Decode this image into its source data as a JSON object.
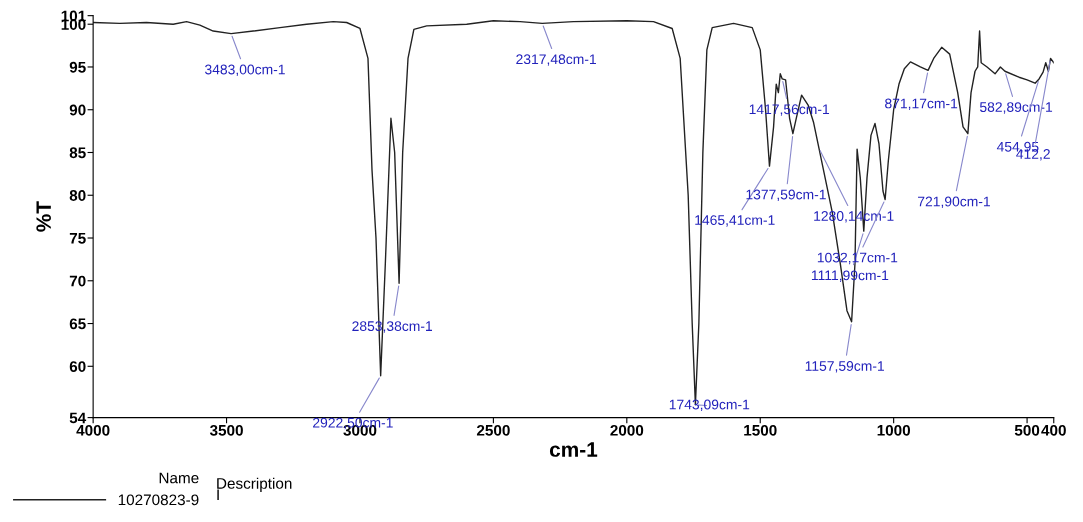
{
  "chart_data": {
    "type": "line",
    "xlabel": "cm-1",
    "ylabel": "%T",
    "xlim": [
      4000,
      400
    ],
    "xticks": [
      4000,
      3500,
      3000,
      2500,
      2000,
      1500,
      1000,
      500,
      400
    ],
    "ylim": [
      54,
      101
    ],
    "yticks": [
      54,
      60,
      65,
      70,
      75,
      80,
      85,
      90,
      95,
      100,
      101
    ],
    "grid": false,
    "legend": "bottom",
    "legend_title": "Name",
    "series": [
      {
        "name": "10270823-9",
        "color": "#222222",
        "x": [
          4000,
          3900,
          3800,
          3700,
          3650,
          3600,
          3550,
          3483,
          3400,
          3300,
          3200,
          3100,
          3050,
          3000,
          2970,
          2955,
          2940,
          2922.5,
          2905,
          2884,
          2870,
          2853.4,
          2840,
          2820,
          2798,
          2750,
          2600,
          2500,
          2400,
          2317,
          2200,
          2000,
          1900,
          1830,
          1800,
          1770,
          1755,
          1743,
          1730,
          1715,
          1700,
          1680,
          1600,
          1530,
          1500,
          1480,
          1465.4,
          1450,
          1440,
          1432,
          1425,
          1417.6,
          1405,
          1390,
          1377.6,
          1365,
          1345,
          1320,
          1300,
          1280,
          1250,
          1230,
          1200,
          1175,
          1157.6,
          1145,
          1137,
          1125,
          1112,
          1100,
          1085,
          1070,
          1055,
          1040,
          1032,
          1020,
          1000,
          980,
          960,
          937,
          900,
          871,
          850,
          820,
          790,
          760,
          740,
          721.9,
          710,
          695,
          685,
          678,
          672,
          650,
          620,
          600,
          582.9,
          530,
          500,
          470,
          455,
          440,
          430,
          420,
          412,
          400
        ],
        "values": [
          100.2,
          100.1,
          100.2,
          100.0,
          100.3,
          99.9,
          99.2,
          98.9,
          99.2,
          99.6,
          100.0,
          100.3,
          100.2,
          99.5,
          96,
          83,
          75,
          58.9,
          72,
          89,
          85,
          69.7,
          85,
          96,
          99.4,
          99.8,
          100.0,
          100.4,
          100.3,
          100.1,
          100.3,
          100.4,
          100.3,
          99.5,
          96,
          80,
          65,
          55.5,
          65,
          85,
          97,
          99.6,
          100.1,
          99.6,
          97,
          90,
          83.4,
          88,
          93,
          92,
          94.2,
          93.6,
          93.5,
          89,
          87.2,
          89,
          91.7,
          90.5,
          88.5,
          85.5,
          81,
          78,
          72,
          66.5,
          65.2,
          72,
          85.4,
          82,
          75.8,
          82,
          87,
          88.4,
          86,
          80.5,
          79.5,
          84,
          90,
          93,
          94.8,
          95.6,
          95,
          94.6,
          96,
          97.3,
          96.5,
          92,
          88,
          87.2,
          92,
          94.5,
          95,
          99.2,
          95.5,
          95,
          94.2,
          95,
          94.5,
          93.8,
          93.5,
          93.1,
          93.6,
          94.4,
          95.5,
          94.5,
          96.0,
          95.5
        ]
      }
    ],
    "annotations": [
      {
        "text": "3483,00cm-1",
        "x": 3483,
        "y": 98.9
      },
      {
        "text": "2317,48cm-1",
        "x": 2317,
        "y": 100.1
      },
      {
        "text": "2922,50cm-1",
        "x": 2922.5,
        "y": 58.9
      },
      {
        "text": "2853,38cm-1",
        "x": 2853.4,
        "y": 69.7
      },
      {
        "text": "1743,09cm-1",
        "x": 1743,
        "y": 55.5
      },
      {
        "text": "1465,41cm-1",
        "x": 1465.4,
        "y": 83.4
      },
      {
        "text": "1417,56cm-1",
        "x": 1417.6,
        "y": 93.6
      },
      {
        "text": "1377,59cm-1",
        "x": 1377.6,
        "y": 87.2
      },
      {
        "text": "1280,14cm-1",
        "x": 1280,
        "y": 85.5
      },
      {
        "text": "1157,59cm-1",
        "x": 1157.6,
        "y": 65.2
      },
      {
        "text": "1111,99cm-1",
        "x": 1112,
        "y": 75.8
      },
      {
        "text": "1032,17cm-1",
        "x": 1032,
        "y": 79.5
      },
      {
        "text": "871,17cm-1",
        "x": 871,
        "y": 94.6
      },
      {
        "text": "721,90cm-1",
        "x": 721.9,
        "y": 87.2
      },
      {
        "text": "582,89cm-1",
        "x": 582.9,
        "y": 94.5
      },
      {
        "text": "454,95",
        "x": 455,
        "y": 93.6
      },
      {
        "text": "412,2",
        "x": 412,
        "y": 96.0
      },
      "Description",
      "I"
    ]
  }
}
